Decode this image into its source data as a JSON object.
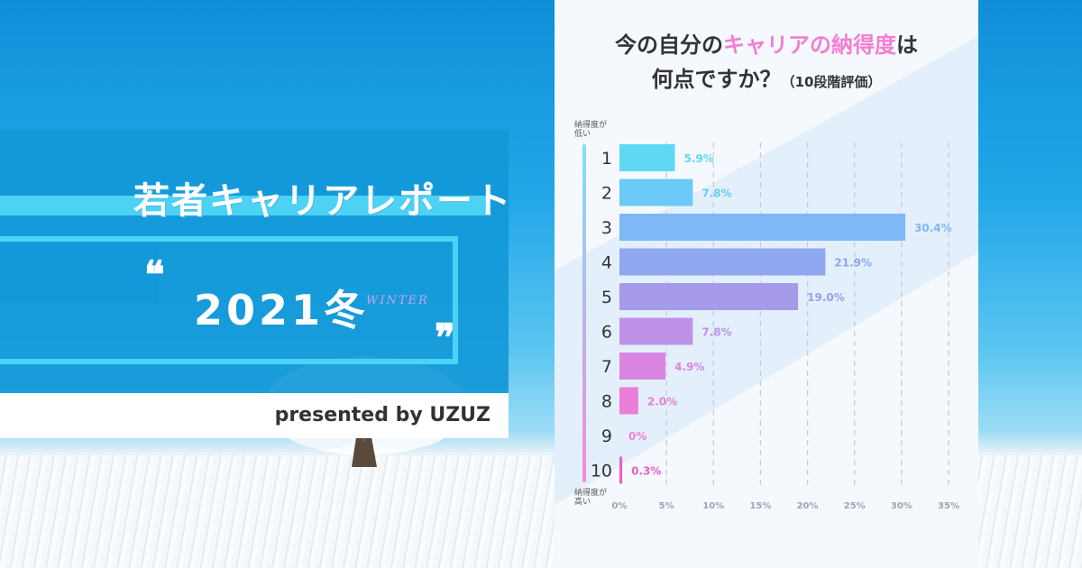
{
  "banner": {
    "title": "若者キャリアレポート",
    "open_quote": "❝",
    "close_quote": "❞",
    "year": "2021冬",
    "season": "WINTER",
    "presented": "presented by UZUZ"
  },
  "chart_title": {
    "line1_a": "今の自分の",
    "line1_b": "キャリアの納得度",
    "line1_c": "は",
    "line2_a": "何点ですか？",
    "line2_b": "（10段階評価）"
  },
  "chart_data": {
    "type": "bar",
    "orientation": "horizontal",
    "categories": [
      "1",
      "2",
      "3",
      "4",
      "5",
      "6",
      "7",
      "8",
      "9",
      "10"
    ],
    "values": [
      5.9,
      7.8,
      30.4,
      21.9,
      19.0,
      7.8,
      4.9,
      2.0,
      0,
      0.3
    ],
    "value_labels": [
      "5.9%",
      "7.8%",
      "30.4%",
      "21.9%",
      "19.0%",
      "7.8%",
      "4.9%",
      "2.0%",
      "0%",
      "0.3%"
    ],
    "xlim": [
      0,
      35
    ],
    "x_ticks": [
      0,
      5,
      10,
      15,
      20,
      25,
      30,
      35
    ],
    "x_tick_labels": [
      "0%",
      "5%",
      "10%",
      "15%",
      "20%",
      "25%",
      "30%",
      "35%"
    ],
    "top_label": [
      "納得度が",
      "低い"
    ],
    "bottom_label": [
      "納得度が",
      "高い"
    ],
    "grid": "vertical dashed",
    "colors": [
      "#5fd8f6",
      "#6ccaf8",
      "#7fb8f4",
      "#8da7f0",
      "#a59bea",
      "#bf92e8",
      "#d986e3",
      "#ea7ed8",
      "#ef82d6",
      "#ea5fc9"
    ]
  }
}
